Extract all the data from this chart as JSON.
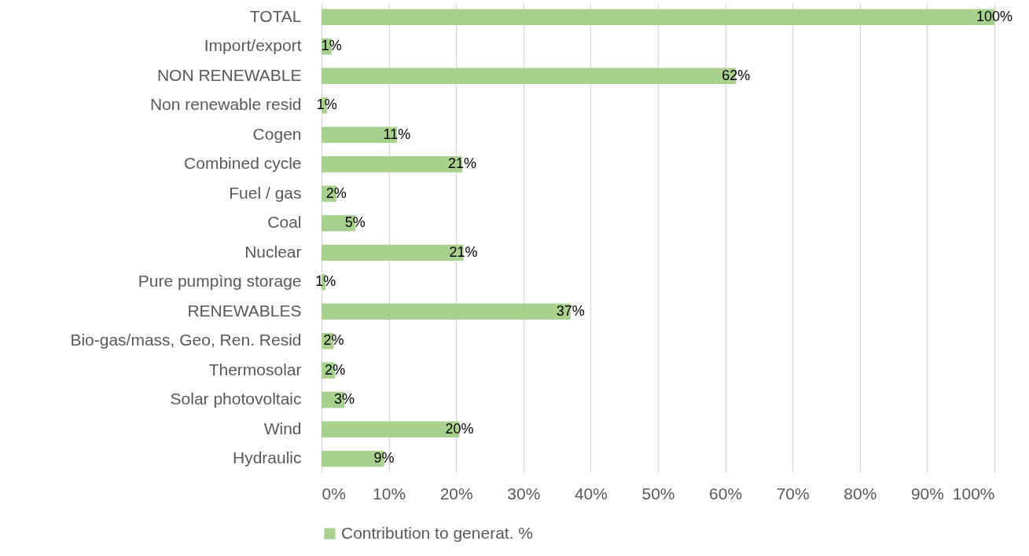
{
  "chart_data": {
    "type": "bar",
    "orientation": "horizontal",
    "categories": [
      "TOTAL",
      "Import/export",
      "NON RENEWABLE",
      "Non renewable resid",
      "Cogen",
      "Combined cycle",
      "Fuel / gas",
      "Coal",
      "Nuclear",
      "Pure pumpìng storage",
      "RENEWABLES",
      "Bio-gas/mass, Geo, Ren. Resid",
      "Thermosolar",
      "Solar photovoltaic",
      "Wind",
      "Hydraulic"
    ],
    "series": [
      {
        "name": "Contribution to generat. %",
        "color": "#a9d18e",
        "values": [
          100,
          1.5,
          61.6,
          0.8,
          11.2,
          20.9,
          2.2,
          5.0,
          21.1,
          0.6,
          37.0,
          1.8,
          2.0,
          3.4,
          20.5,
          9.3
        ],
        "value_labels": [
          "100%",
          "1%",
          "62%",
          "1%",
          "11%",
          "21%",
          "2%",
          "5%",
          "21%",
          "1%",
          "37%",
          "2%",
          "2%",
          "3%",
          "20%",
          "9%"
        ]
      }
    ],
    "xlim": [
      0,
      100
    ],
    "xticks": [
      {
        "value": 0,
        "label": "0%"
      },
      {
        "value": 10,
        "label": "10%"
      },
      {
        "value": 20,
        "label": "20%"
      },
      {
        "value": 30,
        "label": "30%"
      },
      {
        "value": 40,
        "label": "40%"
      },
      {
        "value": 50,
        "label": "50%"
      },
      {
        "value": 60,
        "label": "60%"
      },
      {
        "value": 70,
        "label": "70%"
      },
      {
        "value": 80,
        "label": "80%"
      },
      {
        "value": 90,
        "label": "90%"
      },
      {
        "value": 100,
        "label": "100%"
      }
    ],
    "grid": "x",
    "legend": "bottom"
  }
}
